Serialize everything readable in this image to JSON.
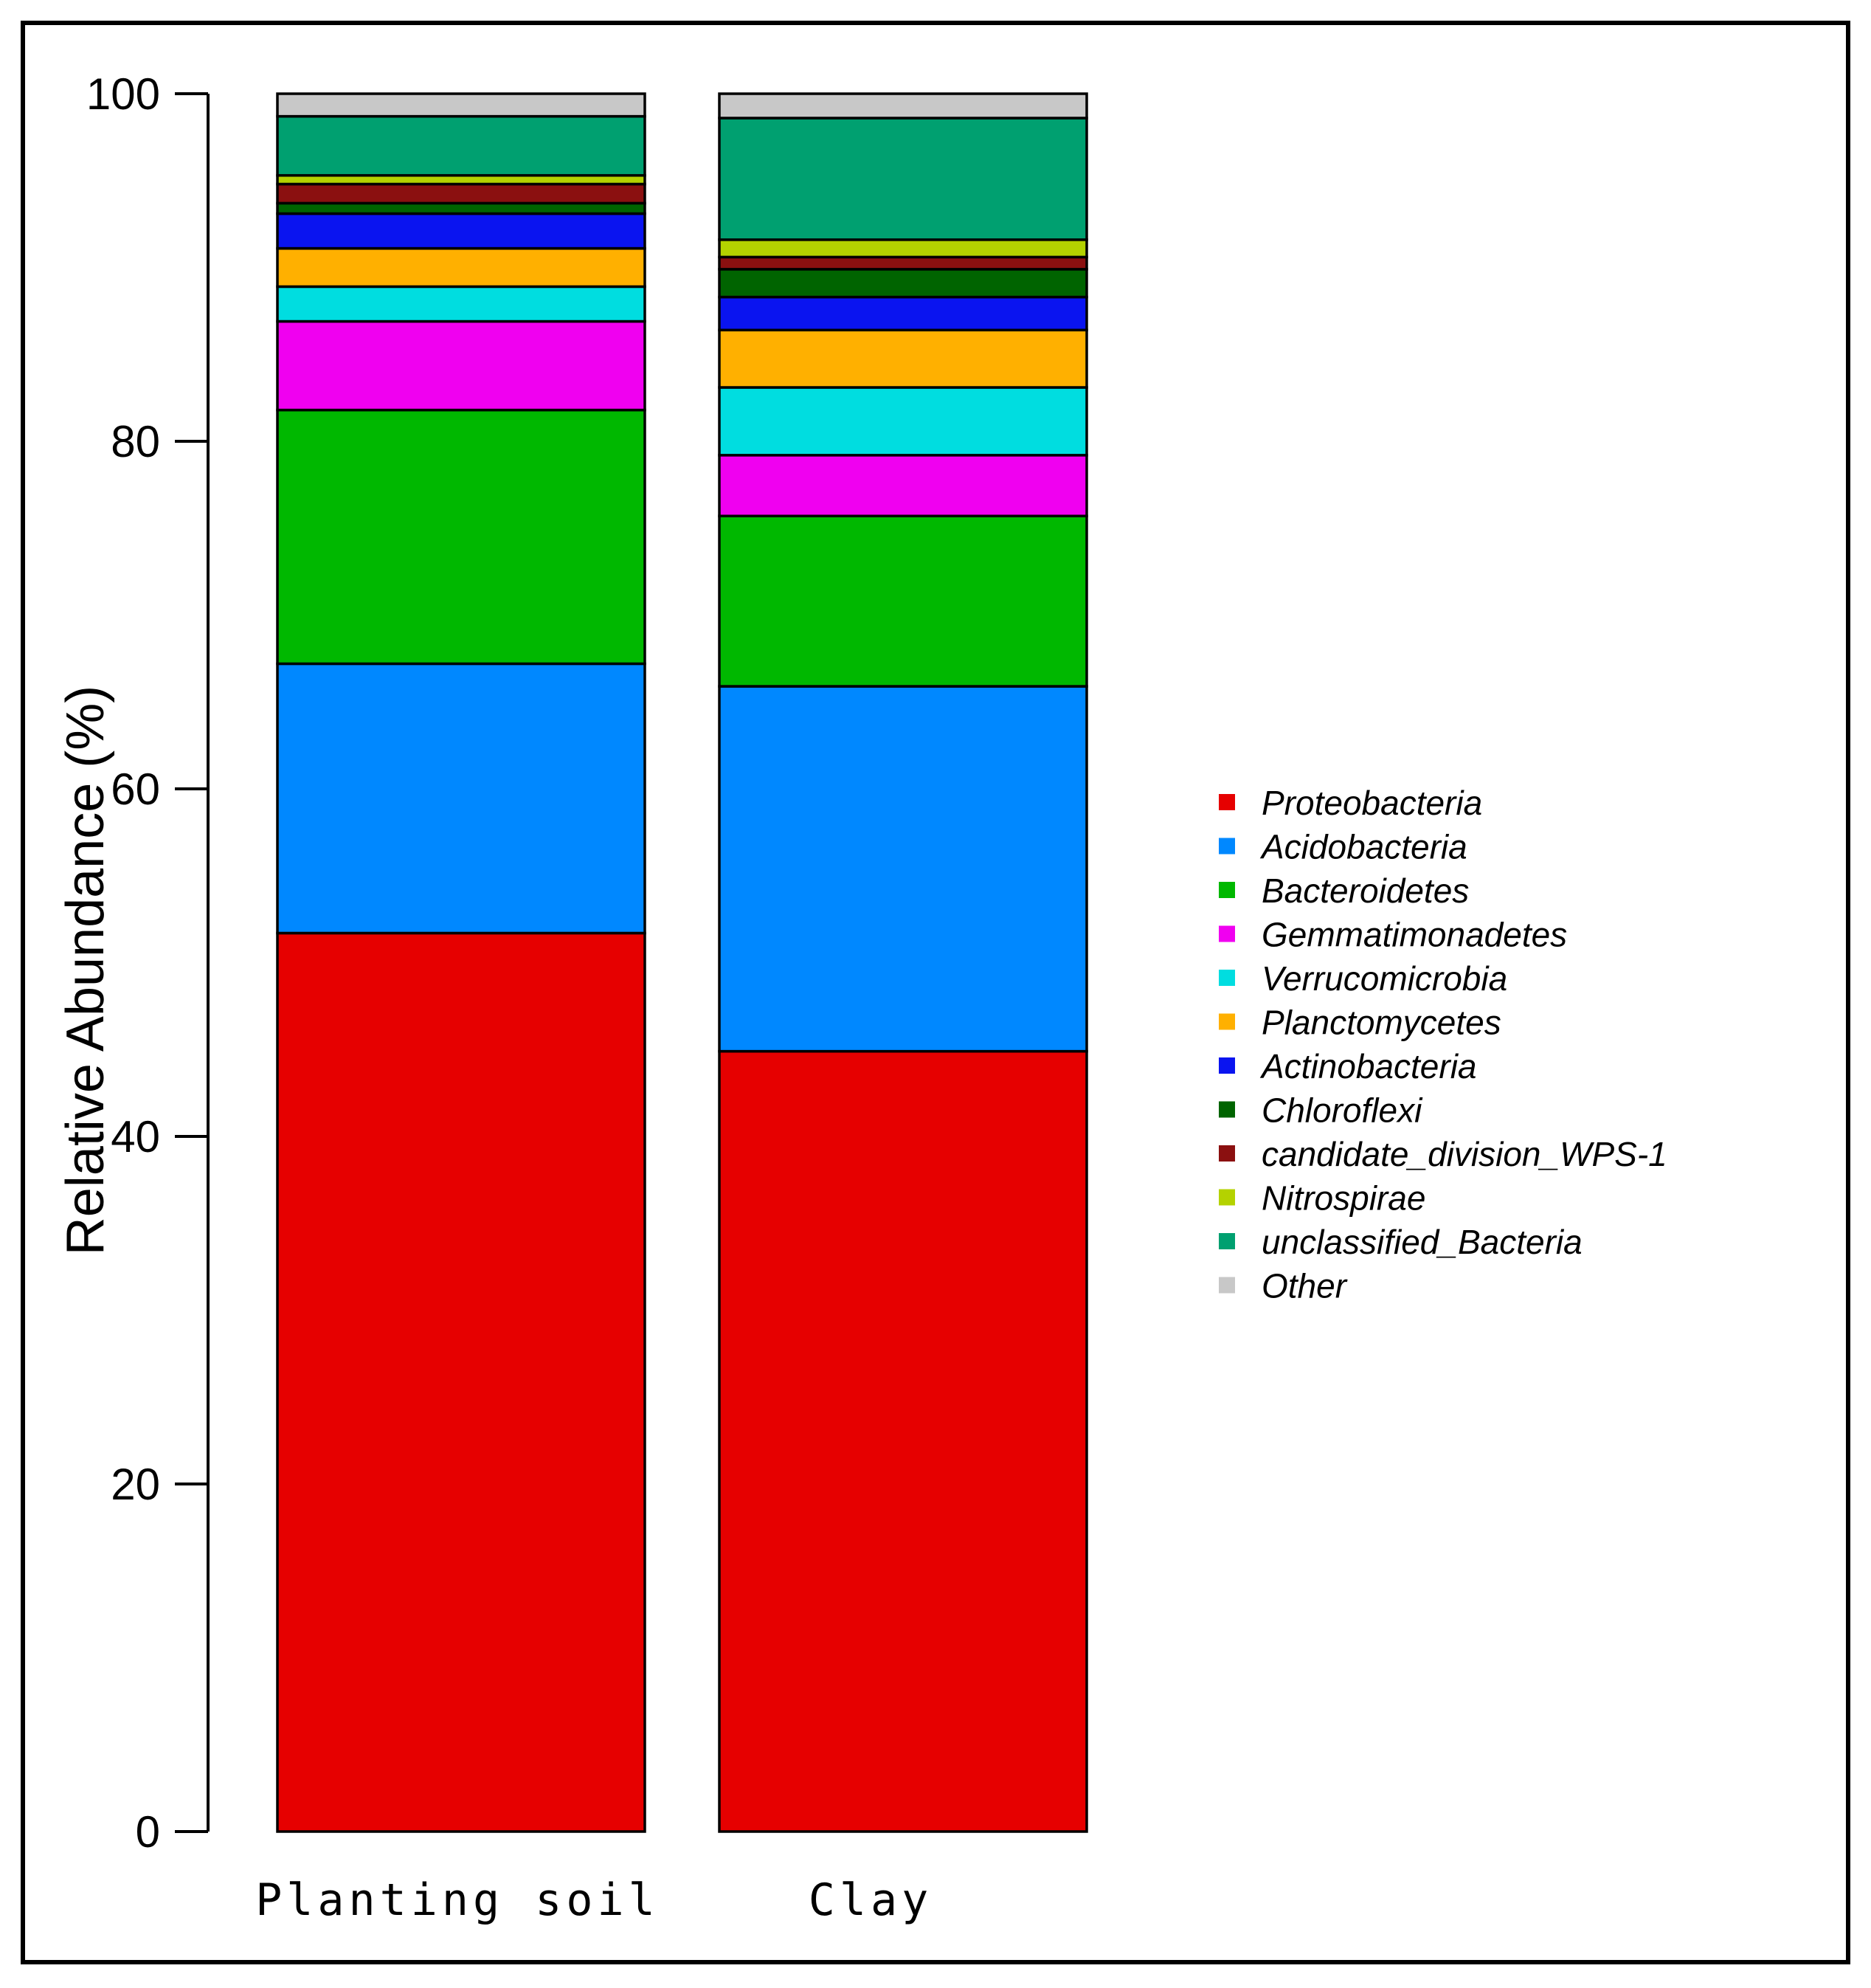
{
  "chart_data": {
    "type": "bar",
    "stacked": true,
    "ylabel": "Relative Abundance (%)",
    "ylim": [
      0,
      100
    ],
    "yticks": [
      0,
      20,
      40,
      60,
      80,
      100
    ],
    "categories": [
      "Planting soil",
      "Clay"
    ],
    "legend_position": "right",
    "series": [
      {
        "name": "Proteobacteria",
        "color": "#E60000",
        "values": [
          51.7,
          44.9
        ]
      },
      {
        "name": "Acidobacteria",
        "color": "#0088FF",
        "values": [
          15.5,
          21.0
        ]
      },
      {
        "name": "Bacteroidetes",
        "color": "#00B800",
        "values": [
          14.6,
          9.8
        ]
      },
      {
        "name": "Gemmatimonadetes",
        "color": "#F000F0",
        "values": [
          5.1,
          3.5
        ]
      },
      {
        "name": "Verrucomicrobia",
        "color": "#00DDE0",
        "values": [
          2.0,
          3.9
        ]
      },
      {
        "name": "Planctomycetes",
        "color": "#FFB000",
        "values": [
          2.2,
          3.3
        ]
      },
      {
        "name": "Actinobacteria",
        "color": "#0A14F0",
        "values": [
          2.0,
          1.9
        ]
      },
      {
        "name": "Chloroflexi",
        "color": "#006400",
        "values": [
          0.6,
          1.6
        ]
      },
      {
        "name": "candidate_division_WPS-1",
        "color": "#8B1010",
        "values": [
          1.1,
          0.7
        ]
      },
      {
        "name": "Nitrospirae",
        "color": "#B4D200",
        "values": [
          0.5,
          1.0
        ]
      },
      {
        "name": "unclassified_Bacteria",
        "color": "#00A070",
        "values": [
          3.4,
          7.0
        ]
      },
      {
        "name": "Other",
        "color": "#C8C8C8",
        "values": [
          1.3,
          1.4
        ]
      }
    ]
  }
}
